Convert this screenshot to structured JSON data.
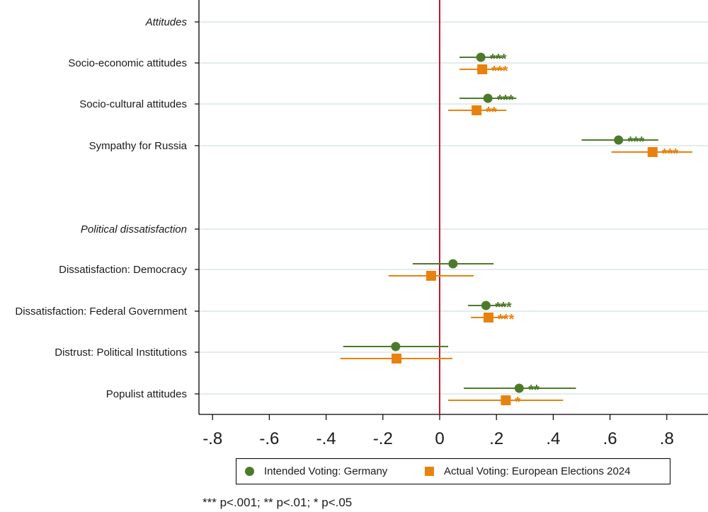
{
  "chart_data": {
    "type": "coefficient-plot",
    "title": "",
    "xlim": [
      -0.85,
      0.94
    ],
    "xticks": [
      -0.8,
      -0.6,
      -0.4,
      -0.2,
      0,
      0.2,
      0.4,
      0.6,
      0.8
    ],
    "xtick_labels": [
      "-.8",
      "-.6",
      "-.4",
      "-.2",
      "0",
      ".2",
      ".4",
      ".6",
      ".8"
    ],
    "reference_line": 0,
    "colors": {
      "intended": "#4d7a2a",
      "actual": "#e8820e",
      "reference": "#c0182f",
      "grid": "#e3ecee"
    },
    "group_labels": [
      "Attitudes",
      "Political dissatisfaction"
    ],
    "categories": [
      "Socio-economic attitudes",
      "Socio-cultural attitudes",
      "Sympathy for Russia",
      "Dissatisfaction: Democracy",
      "Dissatisfaction: Federal Government",
      "Distrust: Political Institutions",
      "Populist attitudes"
    ],
    "series": [
      {
        "name": "Intended Voting: Germany",
        "marker": "circle",
        "estimates": [
          0.145,
          0.17,
          0.63,
          0.047,
          0.163,
          -0.155,
          0.28
        ],
        "ci_low": [
          0.07,
          0.07,
          0.5,
          -0.095,
          0.1,
          -0.34,
          0.085
        ],
        "ci_high": [
          0.22,
          0.27,
          0.77,
          0.19,
          0.235,
          0.03,
          0.48
        ],
        "significance": [
          "***",
          "***",
          "***",
          "",
          "***",
          "",
          "**"
        ]
      },
      {
        "name": "Actual Voting: European Elections 2024",
        "marker": "square",
        "estimates": [
          0.15,
          0.13,
          0.75,
          -0.03,
          0.172,
          -0.152,
          0.233
        ],
        "ci_low": [
          0.07,
          0.03,
          0.605,
          -0.18,
          0.11,
          -0.35,
          0.03
        ],
        "ci_high": [
          0.225,
          0.235,
          0.89,
          0.12,
          0.235,
          0.045,
          0.435
        ],
        "significance": [
          "***",
          "**",
          "***",
          "",
          "***",
          "",
          "*"
        ]
      }
    ],
    "legend": {
      "position": "bottom",
      "items": [
        "Intended Voting: Germany",
        "Actual Voting: European Elections 2024"
      ]
    },
    "footnote": "*** p<.001; ** p<.01; * p<.05"
  }
}
